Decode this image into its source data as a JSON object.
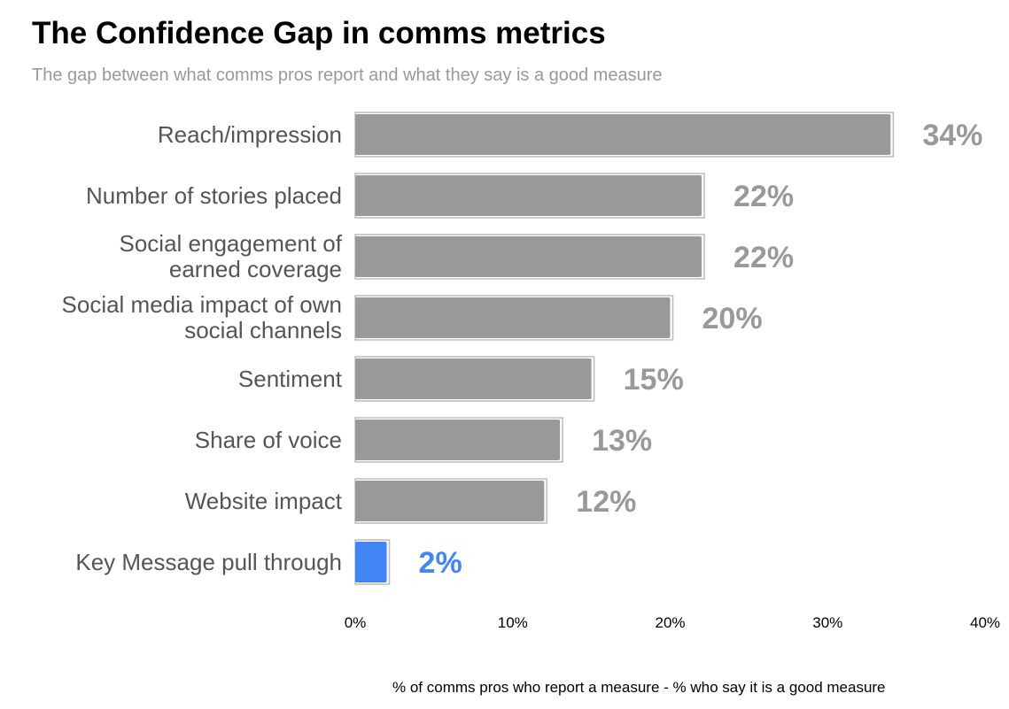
{
  "chart_data": {
    "type": "bar",
    "orientation": "horizontal",
    "title": "The Confidence Gap in comms metrics",
    "subtitle": "The gap between what comms pros report and what they say is a good measure",
    "xlabel": "% of comms pros who report a measure - % who say it is a good measure",
    "ylabel": "",
    "categories": [
      [
        "Reach/impression"
      ],
      [
        "Number of stories placed"
      ],
      [
        "Social engagement of",
        "earned coverage"
      ],
      [
        "Social media impact of own",
        "social channels"
      ],
      [
        "Sentiment"
      ],
      [
        "Share of voice"
      ],
      [
        "Website impact"
      ],
      [
        "Key Message pull through"
      ]
    ],
    "values": [
      34,
      22,
      22,
      20,
      15,
      13,
      12,
      2
    ],
    "value_labels": [
      "34%",
      "22%",
      "22%",
      "20%",
      "15%",
      "13%",
      "12%",
      "2%"
    ],
    "colors": [
      "#999999",
      "#999999",
      "#999999",
      "#999999",
      "#999999",
      "#999999",
      "#999999",
      "#4285f4"
    ],
    "xlim": [
      0,
      40
    ],
    "xticks": [
      0,
      10,
      20,
      30,
      40
    ],
    "xtick_labels": [
      "0%",
      "10%",
      "20%",
      "30%",
      "40%"
    ],
    "grid": false,
    "legend": "none"
  }
}
